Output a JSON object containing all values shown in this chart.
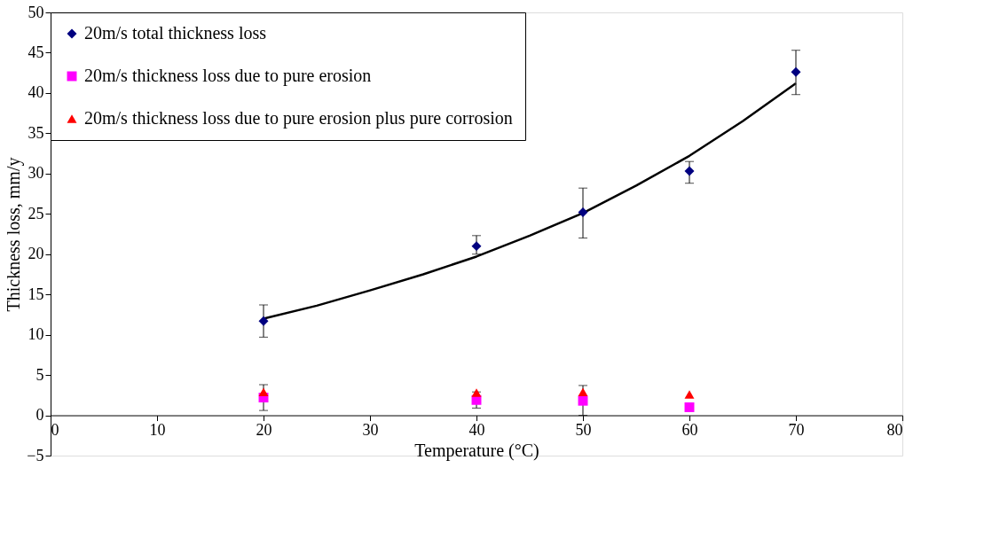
{
  "chart_data": {
    "type": "scatter",
    "xlabel": "Temperature (°C)",
    "ylabel": "Thickness loss, mm/y",
    "xlim": [
      0,
      80
    ],
    "xticks": [
      0,
      10,
      20,
      30,
      40,
      50,
      60,
      70,
      80
    ],
    "ylim": [
      -5,
      50
    ],
    "yticks": [
      -5,
      0,
      5,
      10,
      15,
      20,
      25,
      30,
      35,
      40,
      45,
      50
    ],
    "grid": false,
    "legend": "top left",
    "series": [
      {
        "name": "20m/s total thickness loss",
        "marker": "diamond",
        "color": "#000080",
        "x": [
          20,
          40,
          50,
          60,
          70
        ],
        "values": [
          11.7,
          21.0,
          25.2,
          30.3,
          42.6
        ],
        "errors": [
          [
            9.7,
            13.7
          ],
          [
            20.0,
            22.3
          ],
          [
            22.0,
            28.2
          ],
          [
            28.8,
            31.5
          ],
          [
            39.8,
            45.3
          ]
        ]
      },
      {
        "name": "20m/s thickness loss due to pure erosion",
        "marker": "square",
        "color": "#ff00ff",
        "x": [
          20,
          40,
          50,
          60
        ],
        "values": [
          2.2,
          1.9,
          1.8,
          1.0
        ],
        "errors": [
          [
            0.6,
            3.8
          ],
          [
            0.9,
            2.9
          ],
          [
            0.0,
            3.7
          ],
          null
        ]
      },
      {
        "name": "20m/s thickness loss due to pure erosion plus pure corrosion",
        "marker": "triangle",
        "color": "#ff0000",
        "x": [
          20,
          40,
          50,
          60
        ],
        "values": [
          2.9,
          2.8,
          2.9,
          2.6
        ]
      },
      {
        "type": "line",
        "marker": "none",
        "line_style": "solid",
        "color": "#000000",
        "x": [
          20,
          25,
          30,
          35,
          40,
          45,
          50,
          55,
          60,
          65,
          70
        ],
        "values": [
          12.0,
          13.6,
          15.5,
          17.5,
          19.7,
          22.3,
          25.1,
          28.5,
          32.2,
          36.5,
          41.2
        ]
      }
    ]
  }
}
